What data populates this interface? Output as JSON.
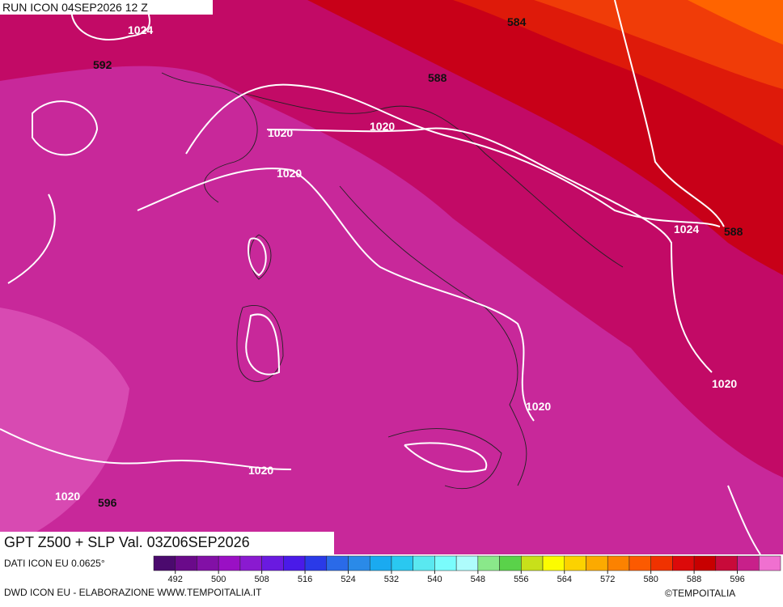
{
  "header": {
    "run": "RUN ICON 04SEP2026 12 Z"
  },
  "map": {
    "labels": [
      "1024",
      "592",
      "584",
      "588",
      "1020",
      "1020",
      "1020",
      "1020",
      "1024",
      "588",
      "1020",
      "1020",
      "1020",
      "596"
    ]
  },
  "footer": {
    "title": "GPT Z500 + SLP Val. 03Z06SEP2026",
    "source": "DATI ICON EU 0.0625°",
    "credits": "DWD ICON EU - ELABORAZIONE WWW.TEMPOITALIA.IT",
    "copyright": "©TEMPOITALIA"
  },
  "colorbar": {
    "lim": [
      488,
      604
    ],
    "ticks": [
      492,
      500,
      508,
      516,
      524,
      532,
      540,
      548,
      556,
      564,
      572,
      580,
      588,
      596
    ],
    "colors": [
      "#4b0a6e",
      "#6a0a8a",
      "#8210a6",
      "#9a10c4",
      "#8a1ad0",
      "#6a1ae0",
      "#4a1ae8",
      "#2a3ae8",
      "#2a6ae8",
      "#2a8ae8",
      "#1aaaf0",
      "#2ac8f0",
      "#5ae8f0",
      "#7afcfc",
      "#aefcfc",
      "#8ae88a",
      "#5ad24a",
      "#c8e01a",
      "#fcfc00",
      "#fcd200",
      "#fcaa00",
      "#fc8200",
      "#fc5a00",
      "#f03200",
      "#dc0a0a",
      "#c80000",
      "#c80a3a",
      "#c8208a",
      "#f070d0"
    ]
  }
}
